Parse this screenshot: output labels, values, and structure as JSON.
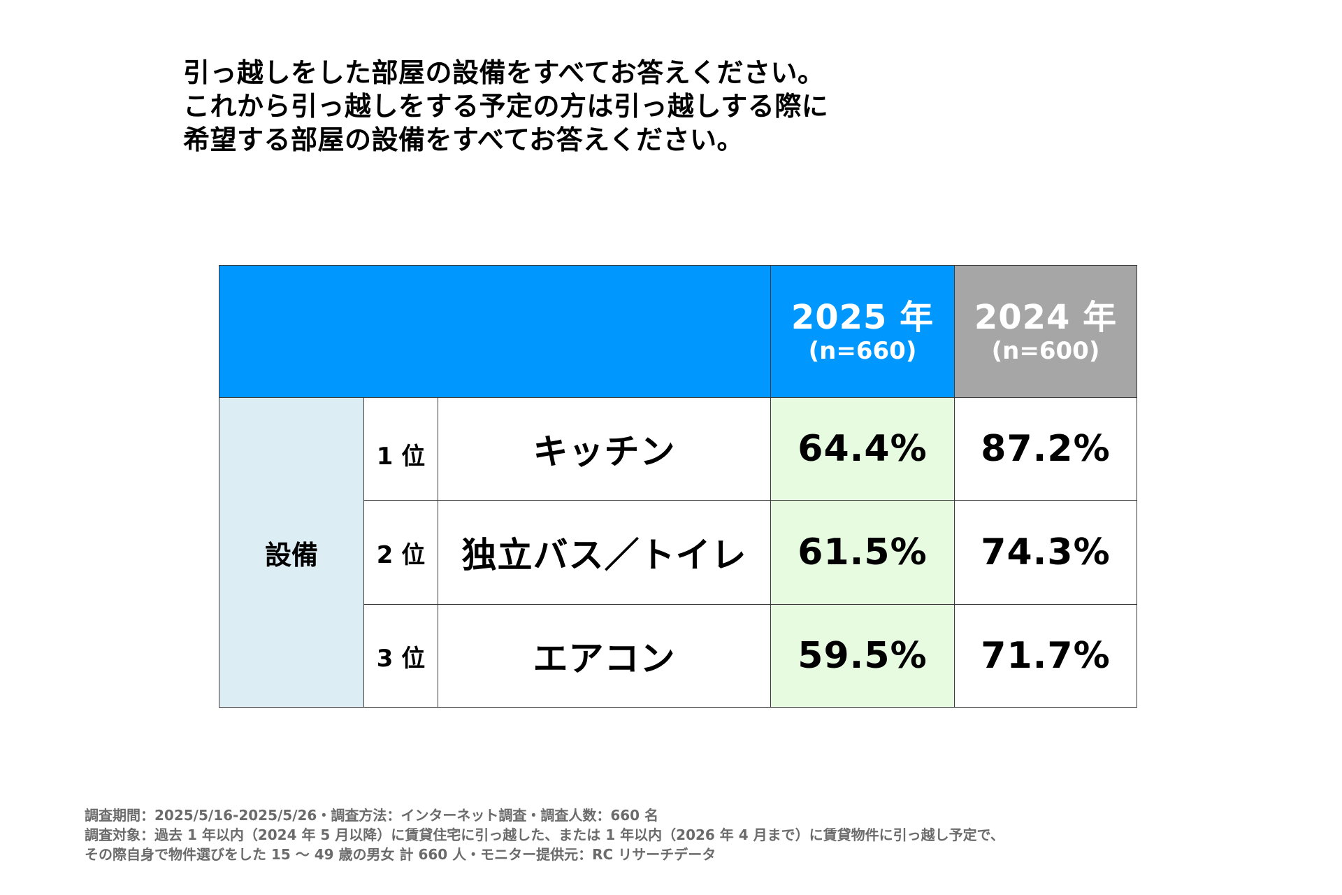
{
  "question": {
    "lines": [
      "引っ越しをした部屋の設備をすべてお答えください。",
      "これから引っ越しをする予定の方は引っ越しする際に",
      "希望する部屋の設備をすべてお答えください。"
    ]
  },
  "table": {
    "header": {
      "col_2025": {
        "year": "2025 年",
        "sample": "(n=660)"
      },
      "col_2024": {
        "year": "2024 年",
        "sample": "(n=600)"
      }
    },
    "category": "設備",
    "rows": [
      {
        "rank": "1 位",
        "item": "キッチン",
        "val_2025": "64.4%",
        "val_2024": "87.2%"
      },
      {
        "rank": "2 位",
        "item": "独立バス／トイレ",
        "val_2025": "61.5%",
        "val_2024": "74.3%"
      },
      {
        "rank": "3 位",
        "item": "エアコン",
        "val_2025": "59.5%",
        "val_2024": "71.7%"
      }
    ]
  },
  "footnote": {
    "lines": [
      "調査期間：2025/5/16-2025/5/26・調査方法：インターネット調査・調査人数：660 名",
      "調査対象：過去 1 年以内（2024 年 5 月以降）に賃貸住宅に引っ越した、または 1 年以内（2026 年 4 月まで）に賃貸物件に引っ越し予定で、",
      "その際自身で物件選びをした 15 ～ 49 歳の男女 計 660 人・モニター提供元：RC リサーチデータ"
    ]
  },
  "colors": {
    "header_blue": "#0098ff",
    "header_gray": "#a6a6a6",
    "category_bg": "#dcedf4",
    "highlight_2025": "#e6fbe0"
  }
}
